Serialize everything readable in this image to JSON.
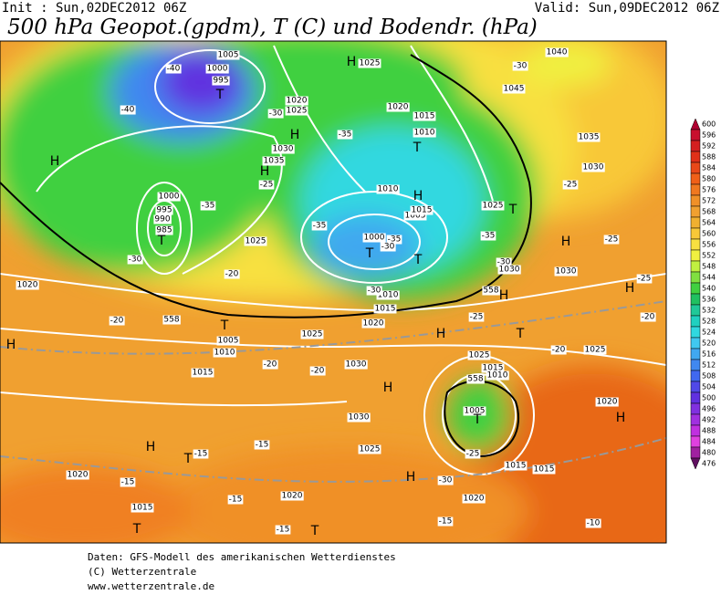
{
  "header": {
    "init": "Init : Sun,02DEC2012 06Z",
    "valid": "Valid: Sun,09DEC2012 06Z",
    "title": "500 hPa Geopot.(gpdm), T (C) und Bodendr. (hPa)"
  },
  "colorbar": {
    "levels": [
      "600",
      "596",
      "592",
      "588",
      "584",
      "580",
      "576",
      "572",
      "568",
      "564",
      "560",
      "556",
      "552",
      "548",
      "544",
      "540",
      "536",
      "532",
      "528",
      "524",
      "520",
      "516",
      "512",
      "508",
      "504",
      "500",
      "496",
      "492",
      "488",
      "484",
      "480",
      "476"
    ],
    "colors": [
      "#b00030",
      "#c8102e",
      "#d42020",
      "#e03018",
      "#e84818",
      "#f06018",
      "#f07820",
      "#f09028",
      "#f0a030",
      "#f0b030",
      "#f8c838",
      "#f8e040",
      "#f0f040",
      "#c0f040",
      "#80e040",
      "#40d040",
      "#20c060",
      "#20c898",
      "#20d0c0",
      "#30d8e0",
      "#40c8f0",
      "#40a8f0",
      "#4088f0",
      "#4068f0",
      "#5048e8",
      "#6030e0",
      "#8030e0",
      "#a030e0",
      "#c030e0",
      "#e040e0",
      "#a020a0",
      "#601060"
    ]
  },
  "map": {
    "labels": [
      "H",
      "1025",
      "T",
      "1000",
      "995",
      "1005",
      "-40",
      "-40",
      "H",
      "H",
      "1020",
      "1025",
      "-30",
      "1030",
      "1035",
      "H",
      "-25",
      "-35",
      "1020",
      "1015",
      "1010",
      "T",
      "1010",
      "H",
      "1005",
      "1015",
      "1000",
      "T",
      "-35",
      "-35",
      "T",
      "-30",
      "1025",
      "T",
      "-35",
      "-30",
      "1030",
      "1040",
      "-30",
      "1045",
      "1035",
      "1030",
      "-25",
      "H",
      "-25",
      "1030",
      "-25",
      "H",
      "-20",
      "1000",
      "995",
      "990",
      "985",
      "T",
      "-30",
      "-35",
      "1025",
      "-20",
      "558",
      "T",
      "1005",
      "1010",
      "1015",
      "-20",
      "1020",
      "H",
      "1025",
      "1020",
      "1015",
      "1010",
      "-30",
      "558",
      "H",
      "-25",
      "H",
      "T",
      "1025",
      "1015",
      "1010",
      "558",
      "-20",
      "1025",
      "-20",
      "-20",
      "1030",
      "H",
      "1005",
      "T",
      "1020",
      "H",
      "1030",
      "H",
      "T",
      "-15",
      "-15",
      "1025",
      "-25",
      "1015",
      "1015",
      "-30",
      "H",
      "1020",
      "-15",
      "-15",
      "1020",
      "1020",
      "1015",
      "T",
      "-15",
      "T",
      "-15",
      "-10"
    ]
  },
  "footer": {
    "lines": [
      "Daten: GFS-Modell des amerikanischen Wetterdienstes",
      "(C) Wetterzentrale",
      "www.wetterzentrale.de"
    ]
  }
}
